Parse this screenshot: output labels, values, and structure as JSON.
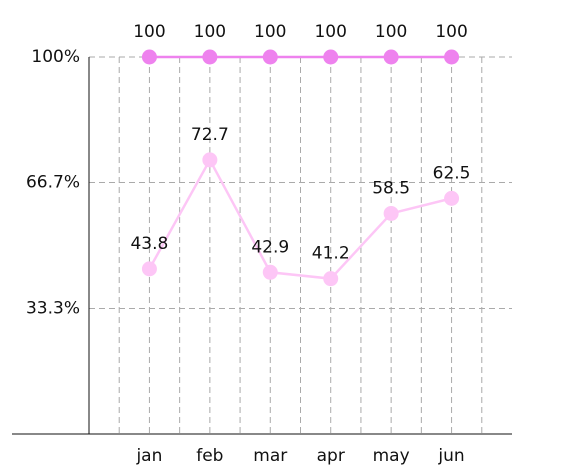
{
  "chart_data": {
    "type": "line",
    "categories": [
      "jan",
      "feb",
      "mar",
      "apr",
      "may",
      "jun"
    ],
    "series": [
      {
        "color": "#ee82ee",
        "values": [
          100,
          100,
          100,
          100,
          100,
          100
        ]
      },
      {
        "color": "#fdc6f6",
        "values": [
          43.8,
          72.7,
          42.9,
          41.2,
          58.5,
          62.5
        ]
      }
    ],
    "ylim": [
      0,
      100
    ],
    "yticks": [
      {
        "value": 33.3,
        "label": "33.3%"
      },
      {
        "value": 66.7,
        "label": "66.7%"
      },
      {
        "value": 100,
        "label": "100%"
      }
    ],
    "grid": true
  }
}
